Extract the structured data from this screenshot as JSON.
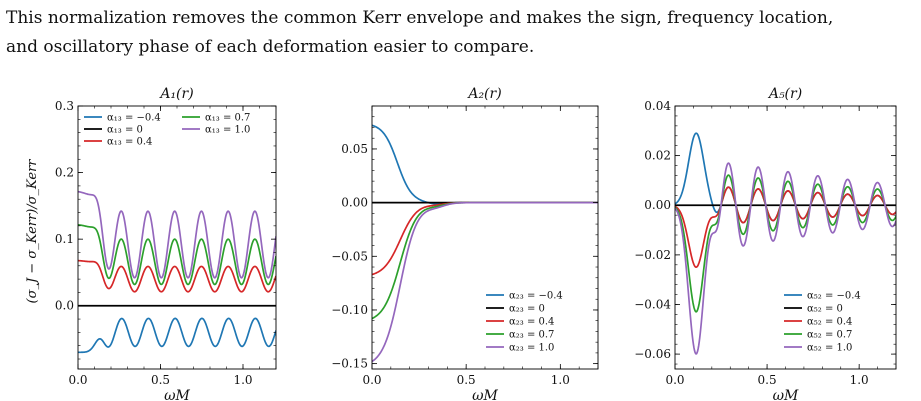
{
  "paragraph": {
    "line1": "This normalization removes the common Kerr envelope and makes the sign, frequency location,",
    "line2": "and oscillatory phase of each deformation easier to compare."
  },
  "chart_data": [
    {
      "type": "line",
      "title": "A₁(r)",
      "xlabel": "ωM",
      "ylabel": "(σ_J − σ_Kerr)/σ_Kerr",
      "xlim": [
        0.0,
        1.2
      ],
      "ylim": [
        -0.095,
        0.3
      ],
      "xticks": [
        0.0,
        0.5,
        1.0
      ],
      "xtick_labels": [
        "0.0",
        "0.5",
        "1.0"
      ],
      "yticks": [
        0.0,
        0.1,
        0.2,
        0.3
      ],
      "ytick_labels": [
        "0.0",
        "0.1",
        "0.2",
        "0.3"
      ],
      "grid": false,
      "legend_position": "upper",
      "legend_columns": 2,
      "series": [
        {
          "name": "α₁₃ = −0.4",
          "color": "#1f77b4",
          "shape": "osc",
          "v0": -0.07,
          "base": -0.04,
          "amp": 0.021,
          "period": 0.162,
          "phase": 0.265
        },
        {
          "name": "α₁₃ = 0",
          "color": "#000000",
          "shape": "flat",
          "v0": 0
        },
        {
          "name": "α₁₃ = 0.4",
          "color": "#d62728",
          "shape": "osc",
          "v0": 0.068,
          "base": 0.04,
          "amp": 0.019,
          "period": 0.162,
          "phase": 0.1
        },
        {
          "name": "α₁₃ = 0.7",
          "color": "#2ca02c",
          "shape": "osc",
          "v0": 0.122,
          "base": 0.066,
          "amp": 0.034,
          "period": 0.162,
          "phase": 0.1
        },
        {
          "name": "α₁₃ = 1.0",
          "color": "#9467bd",
          "shape": "osc",
          "v0": 0.172,
          "base": 0.092,
          "amp": 0.05,
          "period": 0.162,
          "phase": 0.1
        }
      ]
    },
    {
      "type": "line",
      "title": "A₂(r)",
      "xlabel": "ωM",
      "ylabel": "",
      "xlim": [
        0.0,
        1.2
      ],
      "ylim": [
        -0.155,
        0.09
      ],
      "xticks": [
        0.0,
        0.5,
        1.0
      ],
      "xtick_labels": [
        "0.0",
        "0.5",
        "1.0"
      ],
      "yticks": [
        -0.15,
        -0.1,
        -0.05,
        0.0,
        0.05
      ],
      "ytick_labels": [
        "−0.15",
        "−0.10",
        "−0.05",
        "0.00",
        "0.05"
      ],
      "grid": false,
      "legend_position": "lower right",
      "legend_columns": 1,
      "series": [
        {
          "name": "α₂₃ = −0.4",
          "color": "#1f77b4",
          "shape": "decay",
          "v0": 0.072,
          "center": 0.135,
          "width": 0.038
        },
        {
          "name": "α₂₃ = 0",
          "color": "#000000",
          "shape": "flat",
          "v0": 0
        },
        {
          "name": "α₂₃ = 0.4",
          "color": "#d62728",
          "shape": "decay",
          "v0": -0.067,
          "center": 0.15,
          "width": 0.045
        },
        {
          "name": "α₂₃ = 0.7",
          "color": "#2ca02c",
          "shape": "decay",
          "v0": -0.108,
          "center": 0.15,
          "width": 0.045
        },
        {
          "name": "α₂₃ = 1.0",
          "color": "#9467bd",
          "shape": "decay",
          "v0": -0.148,
          "center": 0.15,
          "width": 0.045
        }
      ]
    },
    {
      "type": "line",
      "title": "A₅(r)",
      "xlabel": "ωM",
      "ylabel": "",
      "xlim": [
        0.0,
        1.2
      ],
      "ylim": [
        -0.066,
        0.04
      ],
      "xticks": [
        0.0,
        0.5,
        1.0
      ],
      "xtick_labels": [
        "0.0",
        "0.5",
        "1.0"
      ],
      "yticks": [
        -0.06,
        -0.04,
        -0.02,
        0.0,
        0.02,
        0.04
      ],
      "ytick_labels": [
        "−0.06",
        "−0.04",
        "−0.02",
        "0.00",
        "0.02",
        "0.04"
      ],
      "grid": false,
      "legend_position": "lower right",
      "legend_columns": 1,
      "series": [
        {
          "name": "α₅₂ = −0.4",
          "color": "#1f77b4",
          "shape": "wave",
          "amp": 0.029,
          "mid": 0.115,
          "gw": 0.058,
          "tail": 0.0075,
          "decay": 0.8,
          "period": 0.162
        },
        {
          "name": "α₅₂ = 0",
          "color": "#000000",
          "shape": "flat",
          "v0": 0
        },
        {
          "name": "α₅₂ = 0.4",
          "color": "#d62728",
          "shape": "wave",
          "amp": -0.025,
          "mid": 0.115,
          "gw": 0.058,
          "tail": 0.0075,
          "decay": 0.8,
          "period": 0.162
        },
        {
          "name": "α₅₂ = 0.7",
          "color": "#2ca02c",
          "shape": "wave",
          "amp": -0.043,
          "mid": 0.115,
          "gw": 0.058,
          "tail": 0.0125,
          "decay": 0.8,
          "period": 0.162
        },
        {
          "name": "α₅₂ = 1.0",
          "color": "#9467bd",
          "shape": "wave",
          "amp": -0.06,
          "mid": 0.115,
          "gw": 0.058,
          "tail": 0.0175,
          "decay": 0.8,
          "period": 0.162
        }
      ]
    }
  ]
}
